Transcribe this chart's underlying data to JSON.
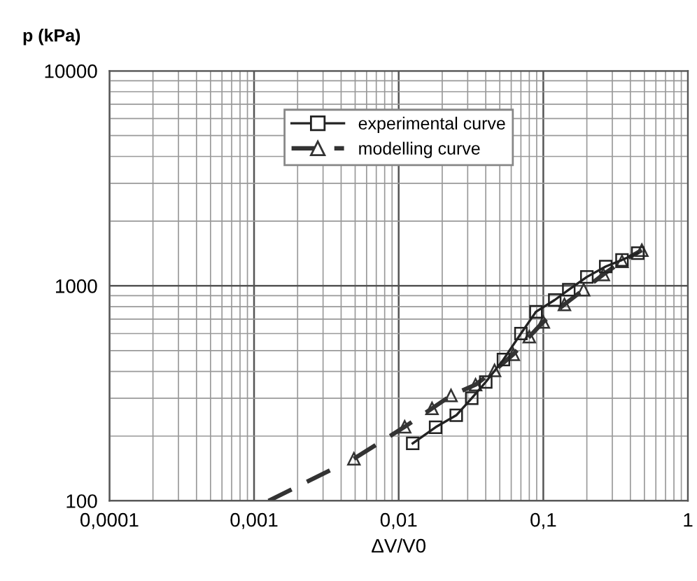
{
  "chart_data": {
    "type": "line",
    "ylabel": "p (kPa)",
    "xlabel": "ΔV/V0",
    "log": "xy",
    "grid": true,
    "legend": "top",
    "xlim": [
      0.0001,
      1
    ],
    "xticks": [
      {
        "value": 0.0001,
        "label": "0,0001"
      },
      {
        "value": 0.001,
        "label": "0,001"
      },
      {
        "value": 0.01,
        "label": "0,01"
      },
      {
        "value": 0.1,
        "label": "0,1"
      },
      1
    ],
    "ylim": [
      100,
      10000
    ],
    "yticks": [
      100,
      1000,
      10000
    ],
    "series": [
      {
        "color": "#333333",
        "marker": "none",
        "line_style": "dashed",
        "x": [
          0.00126,
          0.004
        ],
        "values": [
          100,
          147
        ]
      },
      {
        "name": "modelling curve",
        "color": "#333333",
        "marker": "triangle",
        "line_style": "dashed",
        "x": [
          0.0049,
          0.011,
          0.017,
          0.023,
          0.034,
          0.046,
          0.062,
          0.08,
          0.1,
          0.14,
          0.19,
          0.26,
          0.35,
          0.48
        ],
        "values": [
          157,
          221,
          269,
          309,
          347,
          404,
          480,
          580,
          680,
          820,
          960,
          1130,
          1300,
          1466
        ]
      },
      {
        "name": "experimental curve",
        "color": "#222222",
        "marker": "square",
        "line_style": "solid",
        "x": [
          0.0125,
          0.018,
          0.025,
          0.032,
          0.04,
          0.053,
          0.07,
          0.089,
          0.12,
          0.15,
          0.2,
          0.27,
          0.35,
          0.45
        ],
        "values": [
          185,
          220,
          250,
          300,
          357,
          454,
          600,
          758,
          860,
          960,
          1100,
          1230,
          1320,
          1420
        ]
      }
    ]
  }
}
